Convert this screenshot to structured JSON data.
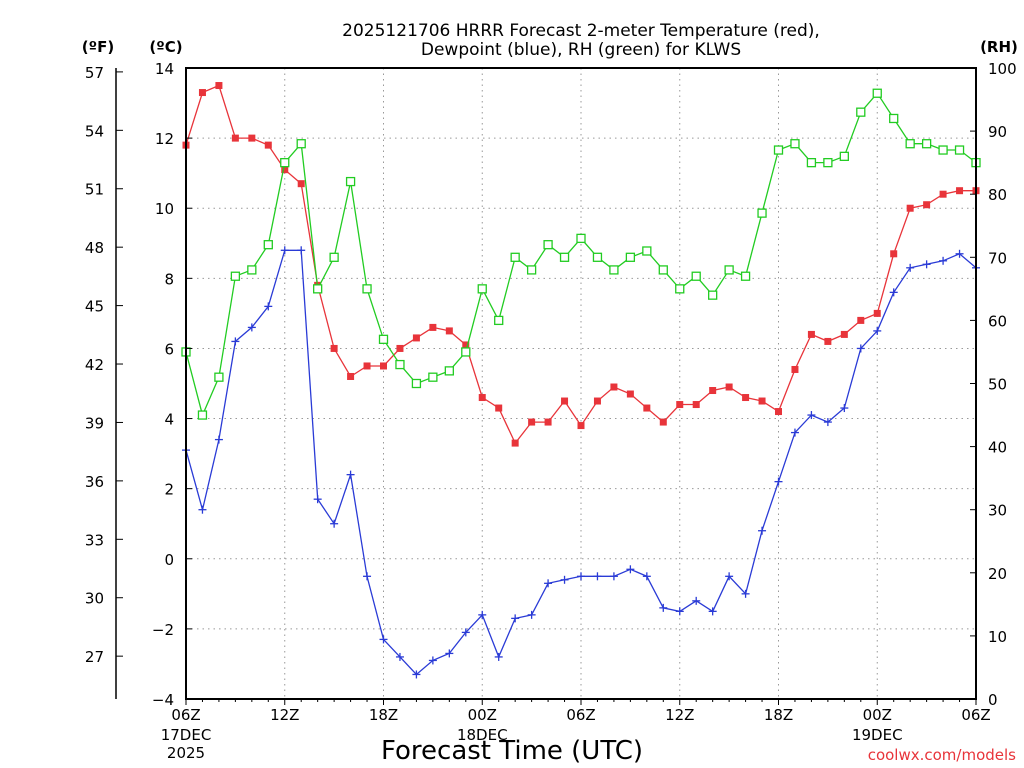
{
  "chart_data": {
    "type": "line",
    "title_line1": "2025121706 HRRR Forecast 2-meter Temperature (red),",
    "title_line2": "Dewpoint (blue), RH (green) for KLWS",
    "xlabel": "Forecast Time (UTC)",
    "credit": "coolwx.com/models",
    "unit_left_f": "(ºF)",
    "unit_left_c": "(ºC)",
    "unit_right": "(RH)",
    "x_range": [
      0,
      48
    ],
    "celsius_axis": {
      "min": -4,
      "max": 14,
      "ticks": [
        "14",
        "12",
        "10",
        "8",
        "6",
        "4",
        "2",
        "0",
        "−2",
        "−4"
      ]
    },
    "fahrenheit_axis": {
      "ticks": [
        "57",
        "54",
        "51",
        "48",
        "45",
        "42",
        "39",
        "36",
        "33",
        "30",
        "27"
      ]
    },
    "rh_axis": {
      "min": 0,
      "max": 100,
      "ticks": [
        "100",
        "90",
        "80",
        "70",
        "60",
        "50",
        "40",
        "30",
        "20",
        "10",
        "0"
      ]
    },
    "x_ticks": [
      {
        "x": 0,
        "line1": "06Z",
        "line2": "17DEC",
        "line3": "2025"
      },
      {
        "x": 6,
        "line1": "12Z",
        "line2": "",
        "line3": ""
      },
      {
        "x": 12,
        "line1": "18Z",
        "line2": "",
        "line3": ""
      },
      {
        "x": 18,
        "line1": "00Z",
        "line2": "18DEC",
        "line3": ""
      },
      {
        "x": 24,
        "line1": "06Z",
        "line2": "",
        "line3": ""
      },
      {
        "x": 30,
        "line1": "12Z",
        "line2": "",
        "line3": ""
      },
      {
        "x": 36,
        "line1": "18Z",
        "line2": "",
        "line3": ""
      },
      {
        "x": 42,
        "line1": "00Z",
        "line2": "19DEC",
        "line3": ""
      },
      {
        "x": 48,
        "line1": "06Z",
        "line2": "",
        "line3": ""
      }
    ],
    "series": [
      {
        "name": "2-meter Temperature (°C)",
        "color": "#e8343a",
        "marker": "filled-square",
        "axis": "celsius",
        "values": [
          11.8,
          13.3,
          13.5,
          12.0,
          12.0,
          11.8,
          11.1,
          10.7,
          7.8,
          6.0,
          5.2,
          5.5,
          5.5,
          6.0,
          6.3,
          6.6,
          6.5,
          6.1,
          4.6,
          4.3,
          3.3,
          3.9,
          3.9,
          4.5,
          3.8,
          4.5,
          4.9,
          4.7,
          4.3,
          3.9,
          4.4,
          4.4,
          4.8,
          4.9,
          4.6,
          4.5,
          4.2,
          5.4,
          6.4,
          6.2,
          6.4,
          6.8,
          7.0,
          8.7,
          10.0,
          10.1,
          10.4,
          10.5,
          10.5
        ]
      },
      {
        "name": "Dewpoint (°C)",
        "color": "#2a3bd6",
        "marker": "plus",
        "axis": "celsius",
        "values": [
          3.1,
          1.4,
          3.4,
          6.2,
          6.6,
          7.2,
          8.8,
          8.8,
          1.7,
          1.0,
          2.4,
          -0.5,
          -2.3,
          -2.8,
          -3.3,
          -2.9,
          -2.7,
          -2.1,
          -1.6,
          -2.8,
          -1.7,
          -1.6,
          -0.7,
          -0.6,
          -0.5,
          -0.5,
          -0.5,
          -0.3,
          -0.5,
          -1.4,
          -1.5,
          -1.2,
          -1.5,
          -0.5,
          -1.0,
          0.8,
          2.2,
          3.6,
          4.1,
          3.9,
          4.3,
          6.0,
          6.5,
          7.6,
          8.3,
          8.4,
          8.5,
          8.7,
          8.3
        ]
      },
      {
        "name": "RH (%)",
        "color": "#22cc22",
        "marker": "open-square",
        "axis": "rh",
        "values": [
          55,
          45,
          51,
          67,
          68,
          72,
          85,
          88,
          65,
          70,
          82,
          65,
          57,
          53,
          50,
          51,
          52,
          55,
          65,
          60,
          70,
          68,
          72,
          70,
          73,
          70,
          68,
          70,
          71,
          68,
          65,
          67,
          64,
          68,
          67,
          77,
          87,
          88,
          85,
          85,
          86,
          93,
          96,
          92,
          88,
          88,
          87,
          87,
          85
        ]
      }
    ]
  }
}
